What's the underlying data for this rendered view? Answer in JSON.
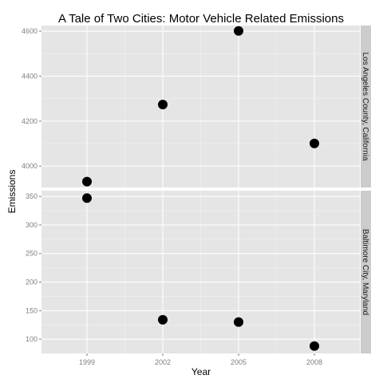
{
  "chart_data": {
    "type": "scatter",
    "title": "A Tale of Two Cities: Motor Vehicle Related Emissions",
    "xlabel": "Year",
    "ylabel": "Emissions",
    "x_ticks": [
      1999,
      2002,
      2005,
      2008
    ],
    "xlim": [
      1997.2,
      2009.8
    ],
    "grid": true,
    "facet_scales": "free_y",
    "panels": [
      {
        "strip_label": "Los Angeles County, California",
        "ylim": [
          3905,
          4625
        ],
        "y_ticks": [
          4000,
          4200,
          4400,
          4600
        ],
        "points": [
          {
            "x": 1999,
            "y": 3931
          },
          {
            "x": 2002,
            "y": 4274
          },
          {
            "x": 2005,
            "y": 4601
          },
          {
            "x": 2008,
            "y": 4101
          }
        ]
      },
      {
        "strip_label": "Baltimore City, Maryland",
        "ylim": [
          75,
          360
        ],
        "y_ticks": [
          100,
          150,
          200,
          250,
          300,
          350
        ],
        "points": [
          {
            "x": 1999,
            "y": 347
          },
          {
            "x": 2002,
            "y": 134
          },
          {
            "x": 2005,
            "y": 130
          },
          {
            "x": 2008,
            "y": 88
          }
        ]
      }
    ],
    "colors": {
      "panel_background": "#e5e5e5",
      "grid_major": "#ffffff",
      "grid_minor": "#f2f2f2",
      "strip_background": "#cccccc",
      "point": "#000000"
    }
  }
}
